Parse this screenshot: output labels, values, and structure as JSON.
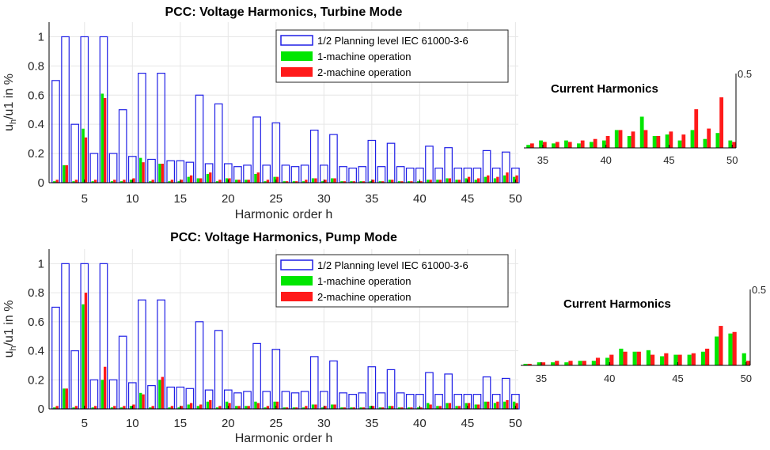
{
  "colors": {
    "planning": "#1f1fe6",
    "one_machine": "#00e600",
    "two_machine": "#ff1a1a",
    "axis": "#000000",
    "grid": "#e6e6e6"
  },
  "chart_data": [
    {
      "id": "turbine-voltage",
      "type": "bar",
      "title": "PCC: Voltage Harmonics, Turbine Mode",
      "xlabel": "Harmonic order h",
      "ylabel": "u_h/u1 in %",
      "xlim": [
        1.3,
        50.3
      ],
      "ylim": [
        0,
        1.1
      ],
      "x_ticks": [
        5,
        10,
        15,
        20,
        25,
        30,
        35,
        40,
        45,
        50
      ],
      "y_ticks": [
        0,
        0.2,
        0.4,
        0.6,
        0.8,
        1
      ],
      "y_tick_labels": [
        "0",
        "0.2",
        "0.4",
        "0.6",
        "0.8",
        "1"
      ],
      "grid": true,
      "legend_position": "top-right",
      "legend": [
        "1/2 Planning level IEC 61000-3-6",
        "1-machine operation",
        "2-machine operation"
      ],
      "x": [
        2,
        3,
        4,
        5,
        6,
        7,
        8,
        9,
        10,
        11,
        12,
        13,
        14,
        15,
        16,
        17,
        18,
        19,
        20,
        21,
        22,
        23,
        24,
        25,
        26,
        27,
        28,
        29,
        30,
        31,
        32,
        33,
        34,
        35,
        36,
        37,
        38,
        39,
        40,
        41,
        42,
        43,
        44,
        45,
        46,
        47,
        48,
        49,
        50
      ],
      "series": [
        {
          "name": "1/2 Planning level IEC 61000-3-6",
          "values": [
            0.7,
            1,
            0.4,
            1,
            0.2,
            1,
            0.2,
            0.5,
            0.18,
            0.75,
            0.16,
            0.75,
            0.15,
            0.15,
            0.14,
            0.6,
            0.13,
            0.54,
            0.13,
            0.11,
            0.12,
            0.45,
            0.12,
            0.41,
            0.12,
            0.11,
            0.12,
            0.36,
            0.12,
            0.33,
            0.11,
            0.1,
            0.11,
            0.29,
            0.11,
            0.27,
            0.11,
            0.1,
            0.1,
            0.25,
            0.1,
            0.24,
            0.1,
            0.1,
            0.1,
            0.22,
            0.1,
            0.21,
            0.1
          ]
        },
        {
          "name": "1-machine operation",
          "values": [
            0.01,
            0.12,
            0.01,
            0.37,
            0.01,
            0.61,
            0.01,
            0.01,
            0.02,
            0.17,
            0.01,
            0.13,
            0.01,
            0.01,
            0.04,
            0.03,
            0.06,
            0.01,
            0.03,
            0.02,
            0.02,
            0.06,
            0.01,
            0.04,
            0.01,
            0.01,
            0.01,
            0.03,
            0.01,
            0.03,
            0.01,
            0.01,
            0.01,
            0.01,
            0.01,
            0.02,
            0.01,
            0.01,
            0.01,
            0.02,
            0.02,
            0.03,
            0.02,
            0.03,
            0.02,
            0.04,
            0.03,
            0.05,
            0.04
          ]
        },
        {
          "name": "2-machine operation",
          "values": [
            0.02,
            0.12,
            0.02,
            0.31,
            0.02,
            0.58,
            0.02,
            0.02,
            0.03,
            0.14,
            0.02,
            0.13,
            0.02,
            0.02,
            0.05,
            0.03,
            0.07,
            0.02,
            0.03,
            0.02,
            0.02,
            0.07,
            0.02,
            0.04,
            0.01,
            0.01,
            0.02,
            0.03,
            0.02,
            0.03,
            0.01,
            0.01,
            0.01,
            0.02,
            0.01,
            0.02,
            0.01,
            0.01,
            0.01,
            0.02,
            0.02,
            0.03,
            0.02,
            0.04,
            0.03,
            0.05,
            0.04,
            0.07,
            0.05
          ]
        }
      ]
    },
    {
      "id": "turbine-current",
      "type": "bar",
      "title": "Current Harmonics",
      "xlabel": "",
      "ylabel": "",
      "xlim": [
        33.5,
        50.3
      ],
      "ylim": [
        0,
        0.5
      ],
      "x_ticks": [
        35,
        40,
        45,
        50
      ],
      "y_ticks": [
        0.5
      ],
      "y_tick_labels": [
        "0.5"
      ],
      "grid": false,
      "x": [
        34,
        35,
        36,
        37,
        38,
        39,
        40,
        41,
        42,
        43,
        44,
        45,
        46,
        47,
        48,
        49,
        50
      ],
      "series": [
        {
          "name": "1-machine operation",
          "values": [
            0.02,
            0.05,
            0.03,
            0.05,
            0.03,
            0.04,
            0.05,
            0.12,
            0.08,
            0.21,
            0.08,
            0.09,
            0.05,
            0.12,
            0.06,
            0.1,
            0.05
          ]
        },
        {
          "name": "2-machine operation",
          "values": [
            0.03,
            0.04,
            0.04,
            0.04,
            0.05,
            0.06,
            0.08,
            0.12,
            0.11,
            0.12,
            0.08,
            0.11,
            0.09,
            0.26,
            0.13,
            0.34,
            0.04
          ]
        }
      ]
    },
    {
      "id": "pump-voltage",
      "type": "bar",
      "title": "PCC: Voltage Harmonics, Pump Mode",
      "xlabel": "Harmonic order h",
      "ylabel": "u_h/u1 in %",
      "xlim": [
        1.3,
        50.3
      ],
      "ylim": [
        0,
        1.1
      ],
      "x_ticks": [
        5,
        10,
        15,
        20,
        25,
        30,
        35,
        40,
        45,
        50
      ],
      "y_ticks": [
        0,
        0.2,
        0.4,
        0.6,
        0.8,
        1
      ],
      "y_tick_labels": [
        "0",
        "0.2",
        "0.4",
        "0.6",
        "0.8",
        "1"
      ],
      "grid": true,
      "legend_position": "top-right",
      "legend": [
        "1/2 Planning level IEC 61000-3-6",
        "1-machine operation",
        "2-machine operation"
      ],
      "x": [
        2,
        3,
        4,
        5,
        6,
        7,
        8,
        9,
        10,
        11,
        12,
        13,
        14,
        15,
        16,
        17,
        18,
        19,
        20,
        21,
        22,
        23,
        24,
        25,
        26,
        27,
        28,
        29,
        30,
        31,
        32,
        33,
        34,
        35,
        36,
        37,
        38,
        39,
        40,
        41,
        42,
        43,
        44,
        45,
        46,
        47,
        48,
        49,
        50
      ],
      "series": [
        {
          "name": "1/2 Planning level IEC 61000-3-6",
          "values": [
            0.7,
            1,
            0.4,
            1,
            0.2,
            1,
            0.2,
            0.5,
            0.18,
            0.75,
            0.16,
            0.75,
            0.15,
            0.15,
            0.14,
            0.6,
            0.13,
            0.54,
            0.13,
            0.11,
            0.12,
            0.45,
            0.12,
            0.41,
            0.12,
            0.11,
            0.12,
            0.36,
            0.12,
            0.33,
            0.11,
            0.1,
            0.11,
            0.29,
            0.11,
            0.27,
            0.11,
            0.1,
            0.1,
            0.25,
            0.1,
            0.24,
            0.1,
            0.1,
            0.1,
            0.22,
            0.1,
            0.21,
            0.1
          ]
        },
        {
          "name": "1-machine operation",
          "values": [
            0.01,
            0.14,
            0.01,
            0.72,
            0.01,
            0.2,
            0.01,
            0.01,
            0.02,
            0.11,
            0.01,
            0.2,
            0.01,
            0.01,
            0.03,
            0.02,
            0.05,
            0.01,
            0.05,
            0.02,
            0.02,
            0.05,
            0.01,
            0.05,
            0.01,
            0.01,
            0.01,
            0.03,
            0.01,
            0.03,
            0.01,
            0.01,
            0.01,
            0.02,
            0.01,
            0.02,
            0.01,
            0.01,
            0.01,
            0.04,
            0.02,
            0.04,
            0.02,
            0.04,
            0.03,
            0.05,
            0.04,
            0.05,
            0.05
          ]
        },
        {
          "name": "2-machine operation",
          "values": [
            0.02,
            0.14,
            0.02,
            0.8,
            0.02,
            0.29,
            0.02,
            0.02,
            0.03,
            0.1,
            0.02,
            0.22,
            0.02,
            0.02,
            0.04,
            0.03,
            0.06,
            0.02,
            0.04,
            0.02,
            0.02,
            0.04,
            0.02,
            0.05,
            0.01,
            0.01,
            0.02,
            0.03,
            0.02,
            0.03,
            0.01,
            0.01,
            0.01,
            0.02,
            0.01,
            0.02,
            0.01,
            0.01,
            0.01,
            0.03,
            0.02,
            0.04,
            0.02,
            0.04,
            0.03,
            0.05,
            0.05,
            0.06,
            0.04
          ]
        }
      ]
    },
    {
      "id": "pump-current",
      "type": "bar",
      "title": "Current Harmonics",
      "xlabel": "",
      "ylabel": "",
      "xlim": [
        33.5,
        50.3
      ],
      "ylim": [
        0,
        0.5
      ],
      "x_ticks": [
        35,
        40,
        45,
        50
      ],
      "y_ticks": [
        0.5
      ],
      "y_tick_labels": [
        "0.5"
      ],
      "grid": false,
      "x": [
        34,
        35,
        36,
        37,
        38,
        39,
        40,
        41,
        42,
        43,
        44,
        45,
        46,
        47,
        48,
        49,
        50
      ],
      "series": [
        {
          "name": "1-machine operation",
          "values": [
            0.01,
            0.02,
            0.02,
            0.02,
            0.03,
            0.03,
            0.05,
            0.11,
            0.09,
            0.1,
            0.06,
            0.07,
            0.07,
            0.09,
            0.19,
            0.21,
            0.08
          ]
        },
        {
          "name": "2-machine operation",
          "values": [
            0.01,
            0.02,
            0.03,
            0.03,
            0.03,
            0.05,
            0.07,
            0.09,
            0.09,
            0.07,
            0.08,
            0.07,
            0.08,
            0.11,
            0.26,
            0.22,
            0.03
          ]
        }
      ]
    }
  ]
}
